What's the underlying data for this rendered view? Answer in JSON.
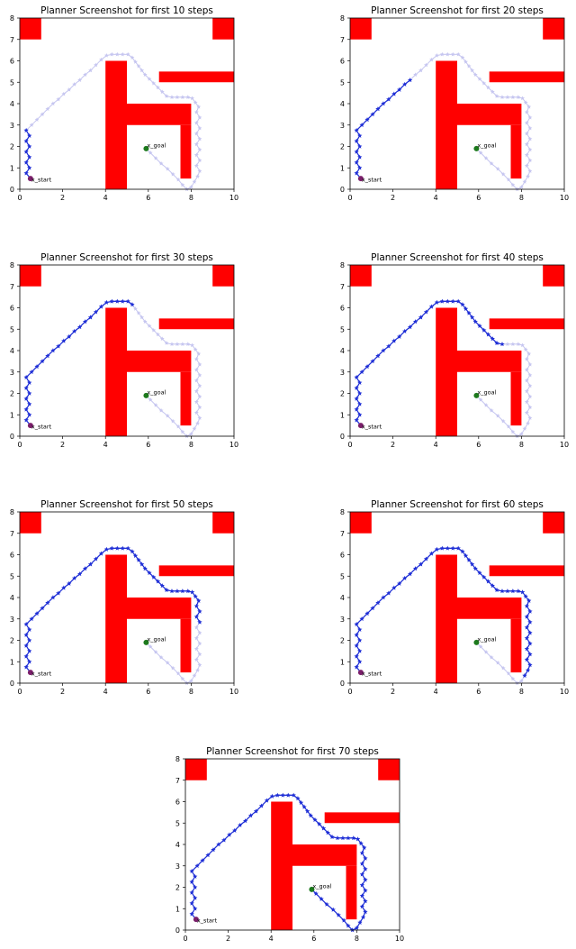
{
  "colors": {
    "obstacle": "#ff0000",
    "path_full": "#c6c6f0",
    "path_traversed": "#1f2fd6",
    "start_marker": "#7b1f6b",
    "goal_marker": "#1d7a1d",
    "frame": "#000000"
  },
  "chart_data": [
    {
      "type": "scatter",
      "title": "Planner Screenshot for first 10 steps",
      "steps": 10
    },
    {
      "type": "scatter",
      "title": "Planner Screenshot for first 20 steps",
      "steps": 20
    },
    {
      "type": "scatter",
      "title": "Planner Screenshot for first 30 steps",
      "steps": 30
    },
    {
      "type": "scatter",
      "title": "Planner Screenshot for first 40 steps",
      "steps": 40
    },
    {
      "type": "scatter",
      "title": "Planner Screenshot for first 50 steps",
      "steps": 50
    },
    {
      "type": "scatter",
      "title": "Planner Screenshot for first 60 steps",
      "steps": 60
    },
    {
      "type": "scatter",
      "title": "Planner Screenshot for first 70 steps",
      "steps": 70
    }
  ],
  "shared": {
    "xlim": [
      0,
      10
    ],
    "ylim": [
      0,
      8
    ],
    "x_ticks": [
      "0",
      "2",
      "4",
      "6",
      "8",
      "10"
    ],
    "y_ticks": [
      "0",
      "1",
      "2",
      "3",
      "4",
      "5",
      "6",
      "7",
      "8"
    ],
    "start": {
      "x": 0.5,
      "y": 0.5,
      "label": "x_start"
    },
    "goal": {
      "x": 5.9,
      "y": 1.9,
      "label": "x_goal"
    },
    "obstacles": [
      [
        0,
        7,
        1,
        1
      ],
      [
        9,
        7,
        1,
        1
      ],
      [
        4,
        0,
        1,
        6
      ],
      [
        5,
        3,
        3,
        1
      ],
      [
        7.5,
        0.5,
        0.5,
        2.5
      ],
      [
        6.5,
        5,
        3.5,
        0.5
      ]
    ],
    "path": [
      [
        0.5,
        0.5
      ],
      [
        0.3,
        0.75
      ],
      [
        0.45,
        1.0
      ],
      [
        0.3,
        1.25
      ],
      [
        0.45,
        1.5
      ],
      [
        0.3,
        1.75
      ],
      [
        0.45,
        2.0
      ],
      [
        0.3,
        2.25
      ],
      [
        0.45,
        2.5
      ],
      [
        0.3,
        2.75
      ],
      [
        0.55,
        3.0
      ],
      [
        0.8,
        3.25
      ],
      [
        1.05,
        3.5
      ],
      [
        1.3,
        3.75
      ],
      [
        1.55,
        4.0
      ],
      [
        1.8,
        4.2
      ],
      [
        2.05,
        4.45
      ],
      [
        2.3,
        4.65
      ],
      [
        2.55,
        4.9
      ],
      [
        2.8,
        5.1
      ],
      [
        3.05,
        5.35
      ],
      [
        3.3,
        5.55
      ],
      [
        3.55,
        5.8
      ],
      [
        3.8,
        6.05
      ],
      [
        4.05,
        6.25
      ],
      [
        4.3,
        6.3
      ],
      [
        4.55,
        6.3
      ],
      [
        4.8,
        6.3
      ],
      [
        5.05,
        6.3
      ],
      [
        5.25,
        6.15
      ],
      [
        5.4,
        5.95
      ],
      [
        5.55,
        5.75
      ],
      [
        5.7,
        5.55
      ],
      [
        5.85,
        5.35
      ],
      [
        6.05,
        5.15
      ],
      [
        6.25,
        4.95
      ],
      [
        6.45,
        4.75
      ],
      [
        6.65,
        4.55
      ],
      [
        6.85,
        4.35
      ],
      [
        7.1,
        4.3
      ],
      [
        7.35,
        4.3
      ],
      [
        7.6,
        4.3
      ],
      [
        7.85,
        4.3
      ],
      [
        8.05,
        4.25
      ],
      [
        8.2,
        4.05
      ],
      [
        8.35,
        3.85
      ],
      [
        8.25,
        3.6
      ],
      [
        8.4,
        3.35
      ],
      [
        8.25,
        3.1
      ],
      [
        8.4,
        2.85
      ],
      [
        8.25,
        2.6
      ],
      [
        8.4,
        2.35
      ],
      [
        8.25,
        2.1
      ],
      [
        8.4,
        1.85
      ],
      [
        8.25,
        1.6
      ],
      [
        8.4,
        1.35
      ],
      [
        8.25,
        1.1
      ],
      [
        8.4,
        0.85
      ],
      [
        8.3,
        0.6
      ],
      [
        8.15,
        0.35
      ],
      [
        8.0,
        0.1
      ],
      [
        7.8,
        0.0
      ],
      [
        7.6,
        0.2
      ],
      [
        7.4,
        0.45
      ],
      [
        7.15,
        0.7
      ],
      [
        6.9,
        0.95
      ],
      [
        6.6,
        1.2
      ],
      [
        6.35,
        1.45
      ],
      [
        6.1,
        1.7
      ],
      [
        5.9,
        1.9
      ]
    ]
  }
}
